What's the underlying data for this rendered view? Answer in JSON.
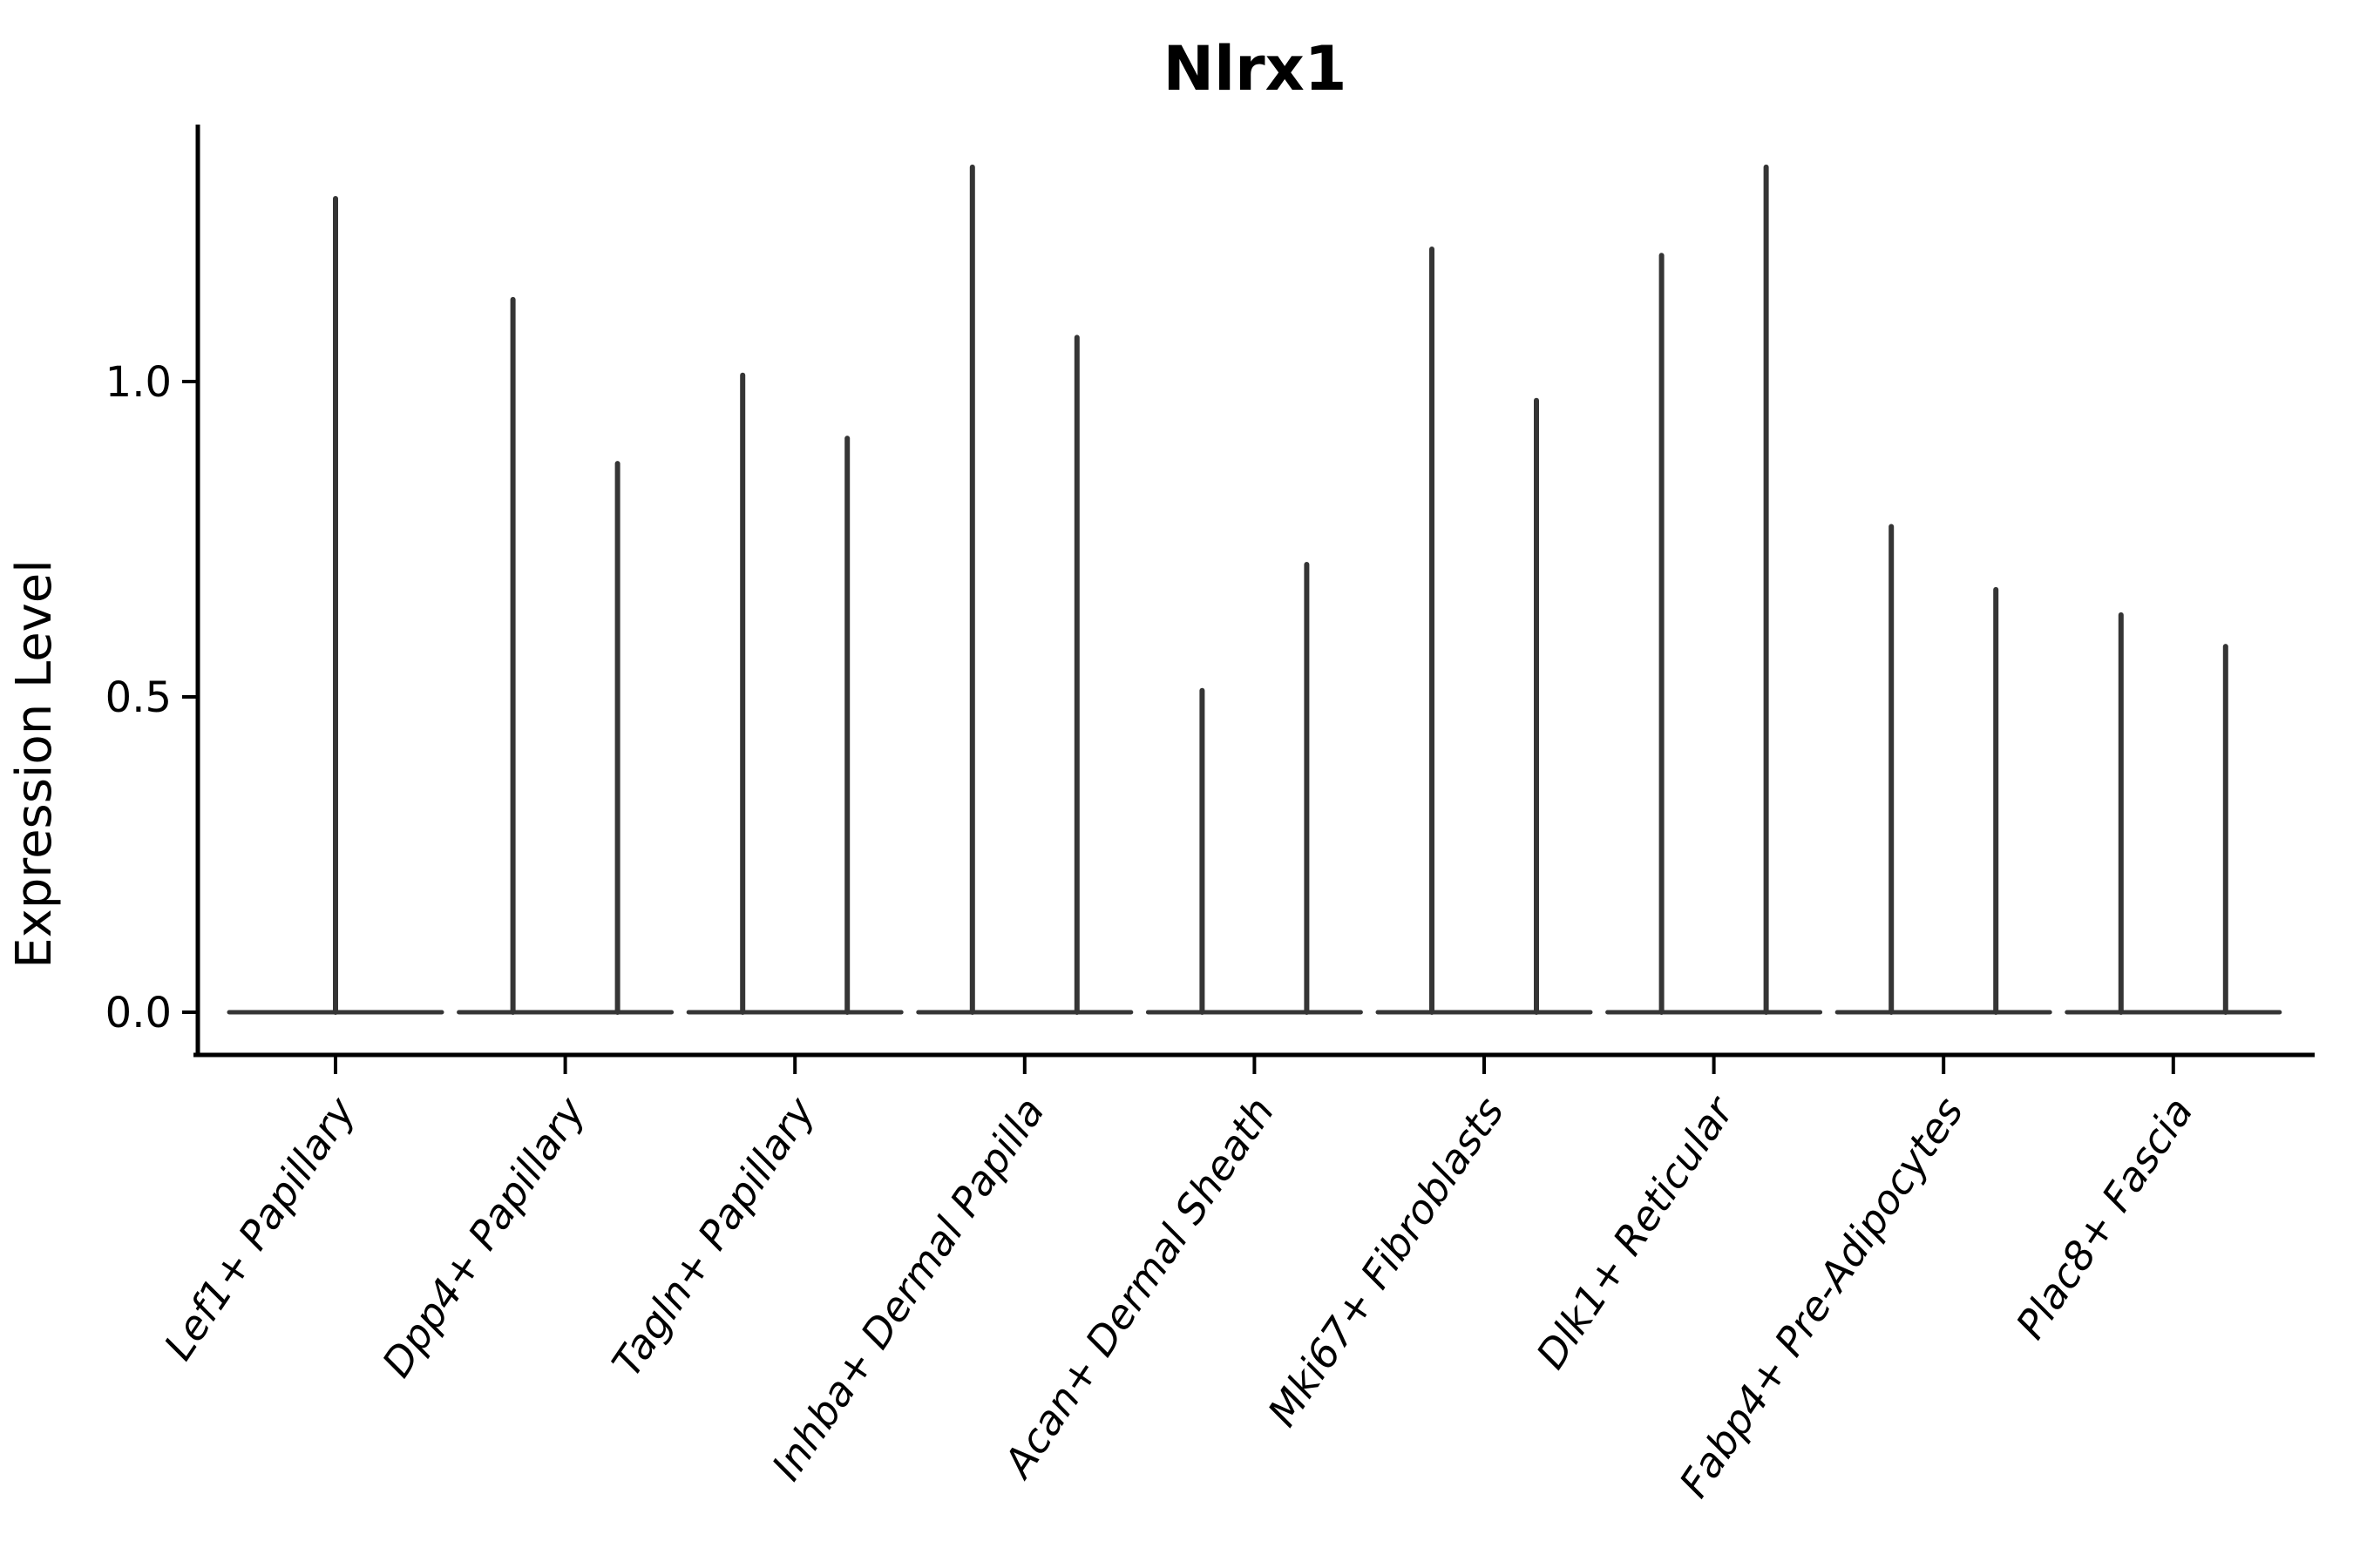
{
  "title": "Nlrx1",
  "axes": {
    "y_label": "Expression Level",
    "y_tick_labels": [
      "0.0",
      "0.5",
      "1.0"
    ]
  },
  "chart_data": {
    "type": "violin",
    "title": "Nlrx1",
    "xlabel": "",
    "ylabel": "Expression Level",
    "ylim": [
      -0.07,
      1.41
    ],
    "yticks": [
      0.0,
      0.5,
      1.0
    ],
    "grid": false,
    "legend": "none",
    "background": "#ffffff",
    "description": "Violin plot of Nlrx1 expression per fibroblast cluster; each violin is collapsed to a flat base at 0 expression with a thin spike rising to the maximum expressing cell. Most categories contain two dodged violins (two groups); Lef1+ Papillary shows a single full-width violin.",
    "categories": [
      "Lef1+ Papillary",
      "Dpp4+ Papillary",
      "Tagln+ Papillary",
      "Inhba+ Dermal Papilla",
      "Acan+ Dermal Sheath",
      "Mki67+ Fibroblasts",
      "Dlk1+ Reticular",
      "Fabp4+ Pre-Adipocytes",
      "Plac8+ Fascia"
    ],
    "violins": [
      {
        "category": "Lef1+ Papillary",
        "spikes": [
          {
            "dodge": "center",
            "max": 1.29
          }
        ]
      },
      {
        "category": "Dpp4+ Papillary",
        "spikes": [
          {
            "dodge": "left",
            "max": 1.13
          },
          {
            "dodge": "right",
            "max": 0.87
          }
        ]
      },
      {
        "category": "Tagln+ Papillary",
        "spikes": [
          {
            "dodge": "left",
            "max": 1.01
          },
          {
            "dodge": "right",
            "max": 0.91
          }
        ]
      },
      {
        "category": "Inhba+ Dermal Papilla",
        "spikes": [
          {
            "dodge": "left",
            "max": 1.34
          },
          {
            "dodge": "right",
            "max": 1.07
          }
        ]
      },
      {
        "category": "Acan+ Dermal Sheath",
        "spikes": [
          {
            "dodge": "left",
            "max": 0.51
          },
          {
            "dodge": "right",
            "max": 0.71
          }
        ]
      },
      {
        "category": "Mki67+ Fibroblasts",
        "spikes": [
          {
            "dodge": "left",
            "max": 1.21
          },
          {
            "dodge": "right",
            "max": 0.97
          }
        ]
      },
      {
        "category": "Dlk1+ Reticular",
        "spikes": [
          {
            "dodge": "left",
            "max": 1.2
          },
          {
            "dodge": "right",
            "max": 1.34
          }
        ]
      },
      {
        "category": "Fabp4+ Pre-Adipocytes",
        "spikes": [
          {
            "dodge": "left",
            "max": 0.77
          },
          {
            "dodge": "right",
            "max": 0.67
          }
        ]
      },
      {
        "category": "Plac8+ Fascia",
        "spikes": [
          {
            "dodge": "left",
            "max": 0.63
          },
          {
            "dodge": "right",
            "max": 0.58
          }
        ]
      }
    ],
    "colors": {
      "violin_stroke": "#353535",
      "axis": "#000000",
      "text": "#000000",
      "background": "#ffffff"
    }
  }
}
